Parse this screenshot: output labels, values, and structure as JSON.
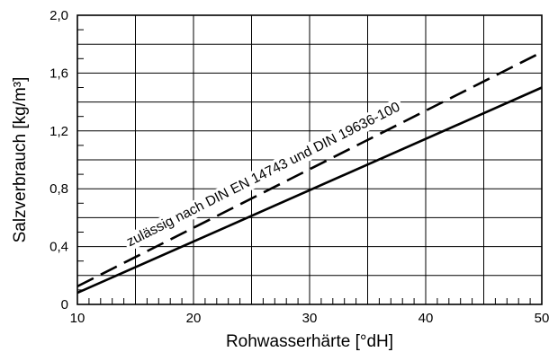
{
  "chart_data": {
    "type": "line",
    "title": "",
    "xlabel": "Rohwasserhärte [°dH]",
    "ylabel": "Salzverbrauch [kg/m³]",
    "xlim": [
      10,
      50
    ],
    "ylim": [
      0,
      2.0
    ],
    "x_ticks": [
      10,
      20,
      30,
      40,
      50
    ],
    "x_tick_labels": [
      "10",
      "20",
      "30",
      "40",
      "50"
    ],
    "y_ticks": [
      0,
      0.4,
      0.8,
      1.2,
      1.6,
      2.0
    ],
    "y_tick_labels": [
      "0",
      "0,4",
      "0,8",
      "1,2",
      "1,6",
      "2,0"
    ],
    "grid": true,
    "x_minor_step": 1,
    "y_minor_step": 0.1,
    "series": [
      {
        "style": "solid",
        "x": [
          10,
          50
        ],
        "y": [
          0.08,
          1.5
        ]
      },
      {
        "style": "dashed",
        "x": [
          10,
          50
        ],
        "y": [
          0.125,
          1.745
        ]
      }
    ],
    "annotations": [
      {
        "text": "zulässig nach DIN EN 14743 und DIN 19636-100",
        "x": 14.5,
        "y": 0.4
      }
    ]
  }
}
